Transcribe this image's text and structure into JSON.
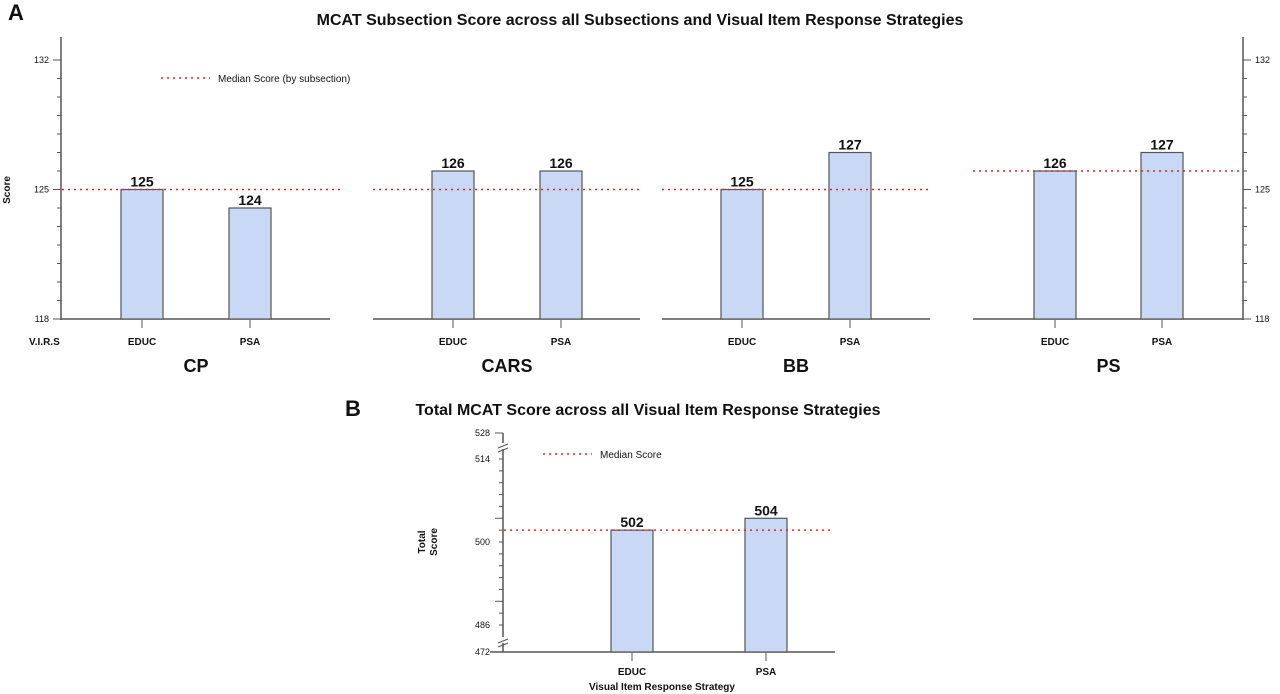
{
  "chart_data": [
    {
      "type": "bar",
      "panel_label": "A",
      "title": "MCAT Subsection Score across all Subsections and Visual Item Response Strategies",
      "ylabel": "Score",
      "xlabel_prefix": "V.I.R.S",
      "ylim": [
        118,
        132
      ],
      "yticks": [
        118,
        125,
        132
      ],
      "legend": {
        "label": "Median Score (by subsection)",
        "style": "red dotted line",
        "placement": "top-left"
      },
      "bar_color": "#c9d9f5",
      "median_color": "#e0242b",
      "categories": [
        "EDUC",
        "PSA"
      ],
      "subsections": [
        {
          "name": "CP",
          "values": [
            125,
            124
          ],
          "median": 125
        },
        {
          "name": "CARS",
          "values": [
            126,
            126
          ],
          "median": 125
        },
        {
          "name": "BB",
          "values": [
            125,
            127
          ],
          "median": 125
        },
        {
          "name": "PS",
          "values": [
            126,
            127
          ],
          "median": 126
        }
      ]
    },
    {
      "type": "bar",
      "panel_label": "B",
      "title": "Total MCAT Score across all Visual Item Response Strategies",
      "ylabel": "Total Score",
      "xlabel": "Visual Item Response Strategy",
      "ylim": [
        472,
        528
      ],
      "axis_breaks": true,
      "yticks": [
        472,
        486,
        500,
        514,
        528
      ],
      "legend": {
        "label": "Median Score",
        "style": "red dotted line",
        "placement": "top-left"
      },
      "bar_color": "#c9d9f5",
      "median_color": "#e0242b",
      "categories": [
        "EDUC",
        "PSA"
      ],
      "values": [
        502,
        504
      ],
      "median": 502
    }
  ]
}
